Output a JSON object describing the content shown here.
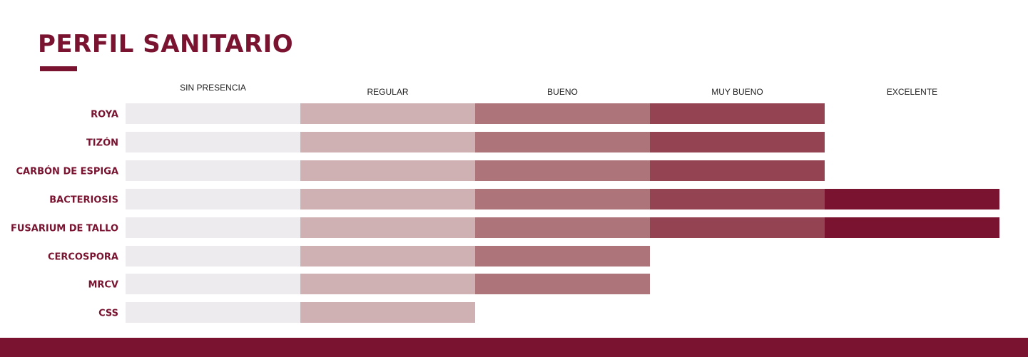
{
  "title": "PERFIL SANITARIO",
  "colors": {
    "accent": "#7a1330",
    "levels": [
      "#eeebee",
      "#cfb0b3",
      "#ad7479",
      "#934352",
      "#7a1330"
    ]
  },
  "chart_data": {
    "type": "bar",
    "orientation": "horizontal",
    "stacked": true,
    "level_labels": [
      "SIN PRESENCIA",
      "REGULAR",
      "BUENO",
      "MUY BUENO",
      "EXCELENTE"
    ],
    "categories": [
      "ROYA",
      "TIZÓN",
      "CARBÓN DE ESPIGA",
      "BACTERIOSIS",
      "FUSARIUM DE TALLO",
      "CERCOSPORA",
      "MRCV",
      "CSS"
    ],
    "values": [
      4,
      4,
      4,
      5,
      5,
      3,
      3,
      2
    ],
    "xlim": [
      0,
      5
    ],
    "legend": "top",
    "grid": false
  }
}
